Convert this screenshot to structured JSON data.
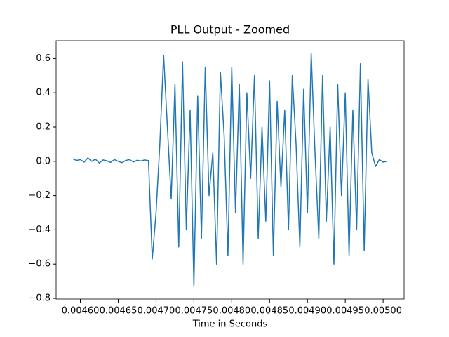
{
  "chart_data": {
    "type": "line",
    "title": "PLL Output - Zoomed",
    "xlabel": "Time in Seconds",
    "color": "#1f77b4",
    "x": [
      0.00459,
      0.004595,
      0.0046,
      0.004605,
      0.00461,
      0.004615,
      0.00462,
      0.004625,
      0.00463,
      0.004635,
      0.00464,
      0.004645,
      0.00465,
      0.004655,
      0.00466,
      0.004665,
      0.00467,
      0.004675,
      0.00468,
      0.004685,
      0.00469,
      0.004695,
      0.0047,
      0.004705,
      0.00471,
      0.004715,
      0.00472,
      0.004725,
      0.00473,
      0.004735,
      0.00474,
      0.004745,
      0.00475,
      0.004755,
      0.00476,
      0.004765,
      0.00477,
      0.004775,
      0.00478,
      0.004785,
      0.00479,
      0.004795,
      0.0048,
      0.004805,
      0.00481,
      0.004815,
      0.00482,
      0.004825,
      0.00483,
      0.004835,
      0.00484,
      0.004845,
      0.00485,
      0.004855,
      0.00486,
      0.004865,
      0.00487,
      0.004875,
      0.00488,
      0.004885,
      0.00489,
      0.004895,
      0.0049,
      0.004905,
      0.00491,
      0.004915,
      0.00492,
      0.004925,
      0.00493,
      0.004935,
      0.00494,
      0.004945,
      0.00495,
      0.004955,
      0.00496,
      0.004965,
      0.00497,
      0.004975,
      0.00498,
      0.004985,
      0.00499,
      0.004995,
      0.005,
      0.005005
    ],
    "values": [
      0.015,
      0.005,
      0.01,
      -0.005,
      0.02,
      0.0,
      0.012,
      -0.01,
      0.008,
      0.003,
      -0.006,
      0.01,
      0.0,
      -0.008,
      0.005,
      0.01,
      -0.004,
      0.006,
      0.002,
      0.008,
      0.004,
      -0.57,
      -0.3,
      0.1,
      0.62,
      0.2,
      -0.22,
      0.45,
      -0.5,
      0.58,
      -0.4,
      0.3,
      -0.73,
      0.38,
      -0.45,
      0.55,
      -0.2,
      0.05,
      -0.6,
      0.52,
      0.15,
      -0.55,
      0.55,
      -0.3,
      0.45,
      -0.6,
      0.4,
      -0.1,
      0.5,
      -0.45,
      0.2,
      -0.35,
      0.47,
      -0.55,
      0.35,
      -0.15,
      0.3,
      -0.4,
      0.5,
      0.1,
      -0.5,
      0.42,
      -0.3,
      0.63,
      0.05,
      -0.45,
      0.5,
      -0.35,
      0.2,
      -0.6,
      0.45,
      -0.2,
      0.4,
      -0.55,
      0.3,
      -0.4,
      0.57,
      -0.52,
      0.48,
      0.05,
      -0.03,
      0.01,
      -0.005,
      0.0
    ],
    "xlim": [
      0.004568,
      0.0050277
    ],
    "xticks": [
      {
        "value": 0.0046,
        "label": "0.00460"
      },
      {
        "value": 0.00465,
        "label": "0.00465"
      },
      {
        "value": 0.0047,
        "label": "0.00470"
      },
      {
        "value": 0.00475,
        "label": "0.00475"
      },
      {
        "value": 0.0048,
        "label": "0.00480"
      },
      {
        "value": 0.00485,
        "label": "0.00485"
      },
      {
        "value": 0.0049,
        "label": "0.00490"
      },
      {
        "value": 0.00495,
        "label": "0.00495"
      },
      {
        "value": 0.005,
        "label": "0.00500"
      }
    ],
    "ylim": [
      -0.804,
      0.704
    ],
    "yticks": [
      {
        "value": -0.8,
        "label": "−0.8"
      },
      {
        "value": -0.6,
        "label": "−0.6"
      },
      {
        "value": -0.4,
        "label": "−0.4"
      },
      {
        "value": -0.2,
        "label": "−0.2"
      },
      {
        "value": 0.0,
        "label": "0.0"
      },
      {
        "value": 0.2,
        "label": "0.2"
      },
      {
        "value": 0.4,
        "label": "0.4"
      },
      {
        "value": 0.6,
        "label": "0.6"
      }
    ]
  }
}
